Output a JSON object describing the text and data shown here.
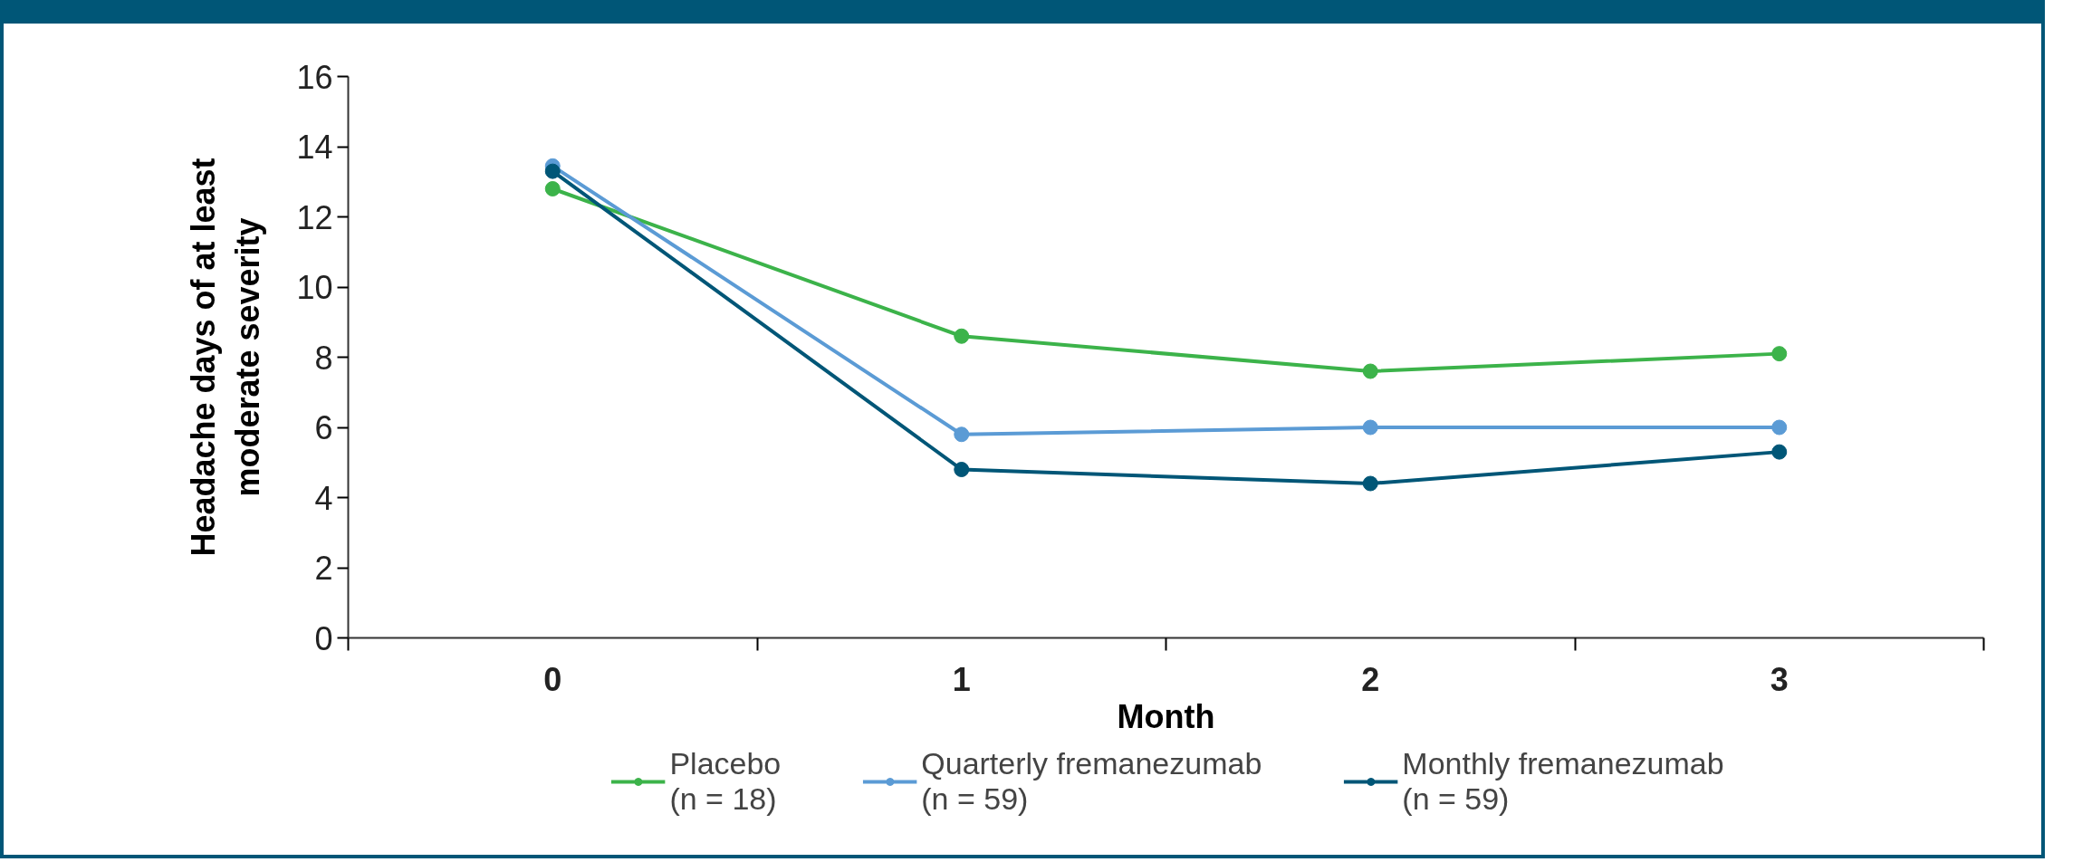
{
  "chart_data": {
    "type": "line",
    "xlabel": "Month",
    "ylabel": "Headache days of at least\nmoderate severity",
    "categories": [
      "0",
      "1",
      "2",
      "3"
    ],
    "series": [
      {
        "name": "Placebo\n(n = 18)",
        "color": "#3cb34a",
        "values": [
          12.8,
          8.6,
          7.6,
          8.1
        ]
      },
      {
        "name": "Quarterly fremanezumab\n(n = 59)",
        "color": "#5b9bd5",
        "values": [
          13.45,
          5.8,
          6.0,
          6.0
        ]
      },
      {
        "name": "Monthly fremanezumab\n(n = 59)",
        "color": "#005677",
        "values": [
          13.3,
          4.8,
          4.4,
          5.3
        ]
      }
    ],
    "ylim": [
      0,
      16
    ],
    "yticks": [
      0,
      2,
      4,
      6,
      8,
      10,
      12,
      14,
      16
    ],
    "grid": false,
    "legend": "bottom",
    "marker": "circle",
    "line_style": "solid"
  }
}
